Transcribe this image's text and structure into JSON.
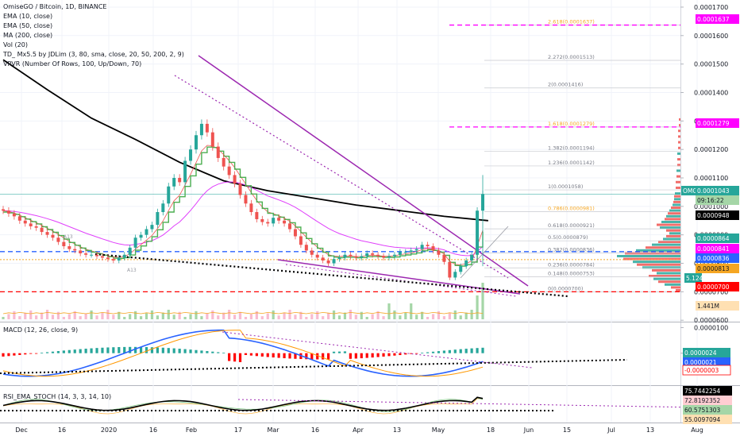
{
  "header": {
    "title": "OmiseGO / Bitcoin, 1D, BINANCE",
    "indicators": [
      "EMA (10, close)",
      "EMA (50, close)",
      "MA (200, close)",
      "Vol (20)",
      "TD_ Mx5.5 by JDLim (3, 80, sma, close, 20, 50, 200, 2, 9)",
      "VPVR (Number Of Rows, 100, Up/Down, 70)"
    ]
  },
  "macd": {
    "label": "MACD (12, 26, close, 9)"
  },
  "rsi": {
    "label": "RSI_EMA_STOCH (14, 3, 3, 14, 10)"
  },
  "colors": {
    "up": "#26a69a",
    "down": "#ef5350",
    "ema10": "#ef5350",
    "ema50": "#e040fb",
    "ma200": "#000000",
    "td": "#4caf50",
    "wedge": "#9c27b0",
    "fib": "#787b86",
    "magenta_level": "#ff00ff",
    "red_level": "#ff0000",
    "blue_level": "#2962ff"
  },
  "chart_data": [
    {
      "type": "candlestick",
      "title": "OmiseGO / Bitcoin, 1D, BINANCE",
      "x_ticks": [
        "Dec",
        "16",
        "2020",
        "16",
        "Feb",
        "17",
        "Mar",
        "16",
        "Apr",
        "13",
        "May",
        "18",
        "Jun",
        "15",
        "Jul",
        "13",
        "Aug"
      ],
      "y_ticks": [
        "0.0001700",
        "0.0001600",
        "0.0001500",
        "0.0001400",
        "0.0001300",
        "0.0001200",
        "0.0001100",
        "0.0001000",
        "0.0000900",
        "0.0000800",
        "0.0000700",
        "0.0000600"
      ],
      "ylim": [
        5.95e-05,
        0.0001725
      ],
      "y_scale": "linear",
      "approx_close_series": [
        9.85e-05,
        9.75e-05,
        9.65e-05,
        9.5e-05,
        9.4e-05,
        9.3e-05,
        9.25e-05,
        9.1e-05,
        9e-05,
        8.9e-05,
        8.75e-05,
        8.6e-05,
        8.5e-05,
        8.45e-05,
        8.35e-05,
        8.3e-05,
        8.3e-05,
        8.25e-05,
        8.2e-05,
        8.15e-05,
        8.1e-05,
        8.2e-05,
        8.3e-05,
        8.55e-05,
        8.9e-05,
        9e-05,
        9.2e-05,
        9.35e-05,
        9.8e-05,
        0.000101,
        0.000107,
        0.00011,
        0.0001085,
        0.000116,
        0.00012,
        0.000125,
        0.000129,
        0.000126,
        0.000121,
        0.000117,
        0.000114,
        0.000111,
        0.000108,
        0.000104,
        0.000101,
        9.8e-05,
        9.55e-05,
        9.45e-05,
        9.4e-05,
        9.6e-05,
        9.5e-05,
        9.4e-05,
        9.2e-05,
        8.95e-05,
        8.65e-05,
        8.45e-05,
        8.3e-05,
        8.2e-05,
        8.1e-05,
        8e-05,
        8.15e-05,
        8.2e-05,
        8.3e-05,
        8.25e-05,
        8.2e-05,
        8.25e-05,
        8.35e-05,
        8.3e-05,
        8.25e-05,
        8.2e-05,
        8.25e-05,
        8.3e-05,
        8.4e-05,
        8.4e-05,
        8.45e-05,
        8.5e-05,
        8.65e-05,
        8.6e-05,
        8.45e-05,
        8.3e-05,
        8.05e-05,
        7.5e-05,
        7.7e-05,
        7.9e-05,
        8.1e-05,
        8.3e-05,
        9.85e-05,
        0.0001043
      ],
      "price_tags": [
        {
          "text": "0.0001637",
          "style": "magenta"
        },
        {
          "text": "0.0001279",
          "style": "magenta"
        },
        {
          "text": "OMGBTC",
          "style": "green-name"
        },
        {
          "text": "0.0001043",
          "style": "green"
        },
        {
          "text": "09:16:22",
          "style": "green-light"
        },
        {
          "text": "0.0000948",
          "style": "black"
        },
        {
          "text": "0.0000864",
          "style": "green"
        },
        {
          "text": "0.0000841",
          "style": "magenta"
        },
        {
          "text": "0.0000836",
          "style": "blue"
        },
        {
          "text": "0.0000813",
          "style": "orange"
        },
        {
          "text": "5.124M",
          "style": "green"
        },
        {
          "text": "0.0000700",
          "style": "red"
        },
        {
          "text": "1.441M",
          "style": "orange-light"
        }
      ],
      "fib_levels": [
        {
          "label": "2.618(0.0001637)",
          "value": 0.0001637,
          "color": "#f5a623"
        },
        {
          "label": "2.272(0.0001513)",
          "value": 0.0001513,
          "color": "#787b86"
        },
        {
          "label": "2(0.0001416)",
          "value": 0.0001416,
          "color": "#787b86"
        },
        {
          "label": "1.618(0.0001279)",
          "value": 0.0001279,
          "color": "#f5a623"
        },
        {
          "label": "1.382(0.0001194)",
          "value": 0.0001194,
          "color": "#787b86"
        },
        {
          "label": "1.236(0.0001142)",
          "value": 0.0001142,
          "color": "#787b86"
        },
        {
          "label": "1(0.0001058)",
          "value": 0.0001058,
          "color": "#787b86"
        },
        {
          "label": "0.786(0.0000981)",
          "value": 9.81e-05,
          "color": "#f5a623"
        },
        {
          "label": "0.618(0.0000921)",
          "value": 9.21e-05,
          "color": "#787b86"
        },
        {
          "label": "0.5(0.0000879)",
          "value": 8.79e-05,
          "color": "#787b86"
        },
        {
          "label": "0.382(0.0000836)",
          "value": 8.36e-05,
          "color": "#787b86"
        },
        {
          "label": "0.236(0.0000784)",
          "value": 7.84e-05,
          "color": "#787b86"
        },
        {
          "label": "0.148(0.0000753)",
          "value": 7.53e-05,
          "color": "#787b86"
        },
        {
          "label": "0(0.0000700)",
          "value": 7e-05,
          "color": "#787b86"
        }
      ],
      "dashed_levels": [
        {
          "value": 0.0001637,
          "color": "#ff00ff"
        },
        {
          "value": 0.0001279,
          "color": "#ff00ff"
        },
        {
          "value": 8.41e-05,
          "color": "#2962ff"
        },
        {
          "value": 7e-05,
          "color": "#ff0000"
        }
      ],
      "ma200": [
        [
          0,
          0.0001515
        ],
        [
          8,
          0.000141
        ],
        [
          16,
          0.000131
        ],
        [
          24,
          0.0001235
        ],
        [
          32,
          0.0001155
        ],
        [
          40,
          0.000109
        ],
        [
          48,
          0.0001055
        ],
        [
          56,
          0.000103
        ],
        [
          64,
          0.0001005
        ],
        [
          72,
          9.85e-05
        ],
        [
          80,
          9.65e-05
        ],
        [
          88,
          9.5e-05
        ]
      ],
      "volume_labels": [
        "1.441M",
        "5.124M"
      ],
      "annotations": [
        "A13",
        "A13"
      ]
    },
    {
      "type": "macd",
      "title": "MACD (12, 26, close, 9)",
      "y_ticks": [
        "0.0000100",
        "0.0000000"
      ],
      "tags": [
        {
          "text": "0.0000024",
          "style": "green"
        },
        {
          "text": "0.0000021",
          "style": "blue"
        },
        {
          "text": "-0.0000003",
          "style": "red"
        }
      ],
      "ylim": [
        -1.25e-05,
        1.2e-05
      ]
    },
    {
      "type": "rsi",
      "title": "RSI_EMA_STOCH (14, 3, 3, 14, 10)",
      "tags": [
        {
          "text": "75.7442254",
          "style": "black"
        },
        {
          "text": "72.8192352",
          "style": "red"
        },
        {
          "text": "60.5751303",
          "style": "green-light"
        },
        {
          "text": "55.0097094",
          "style": "orange"
        }
      ],
      "ylim": [
        20,
        95
      ]
    }
  ]
}
